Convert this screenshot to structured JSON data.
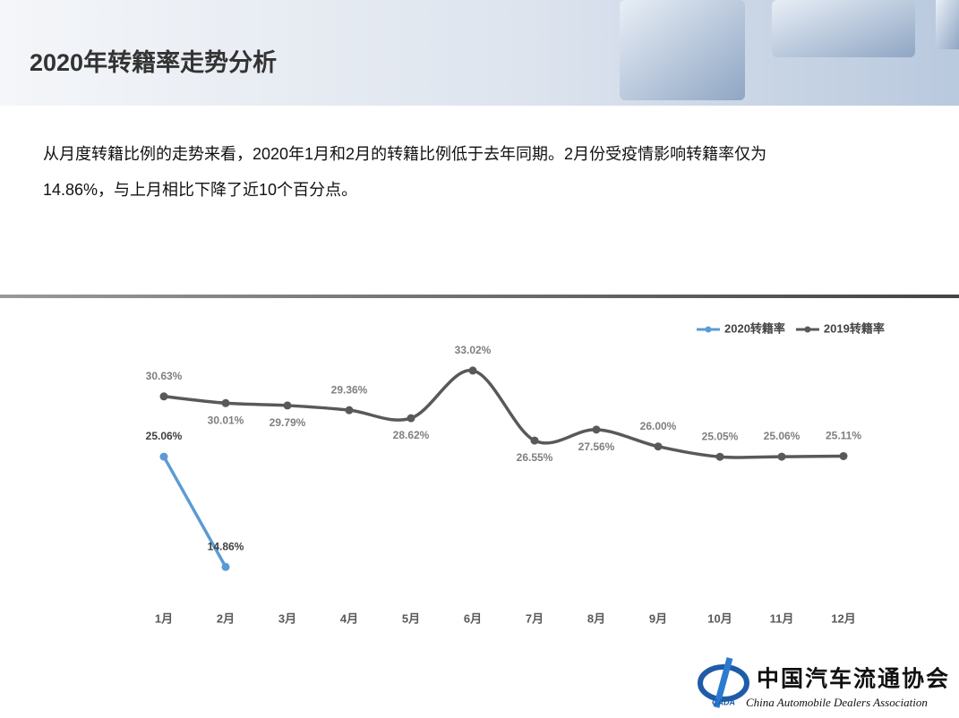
{
  "slide_title": "2020年转籍率走势分析",
  "paragraph": [
    "从月度转籍比例的走势来看，2020年1月和2月的转籍比例低于去年同期。2月份受疫情影响转籍率仅为",
    "14.86%，与上月相比下降了近10个百分点。"
  ],
  "logo": {
    "name": "中国汽车流通协会",
    "english": "China Automobile Dealers Association",
    "mark": "CADA"
  },
  "chart_data": {
    "type": "line",
    "categories": [
      "1月",
      "2月",
      "3月",
      "4月",
      "5月",
      "6月",
      "7月",
      "8月",
      "9月",
      "10月",
      "11月",
      "12月"
    ],
    "series": [
      {
        "name": "2020转籍率",
        "color": "#5b9bd5",
        "values": [
          25.06,
          14.86,
          null,
          null,
          null,
          null,
          null,
          null,
          null,
          null,
          null,
          null
        ],
        "value_labels": [
          "25.06%",
          "14.86%",
          null,
          null,
          null,
          null,
          null,
          null,
          null,
          null,
          null,
          null
        ]
      },
      {
        "name": "2019转籍率",
        "color": "#595959",
        "values": [
          30.63,
          30.01,
          29.79,
          29.36,
          28.62,
          33.02,
          26.55,
          27.56,
          26.0,
          25.05,
          25.06,
          25.11
        ],
        "value_labels": [
          "30.63%",
          "30.01%",
          "29.79%",
          "29.36%",
          "28.62%",
          "33.02%",
          "26.55%",
          "27.56%",
          "26.00%",
          "25.05%",
          "25.06%",
          "25.11%"
        ]
      }
    ],
    "ylim": [
      10,
      35
    ],
    "legend": "top-right",
    "smooth": true
  }
}
